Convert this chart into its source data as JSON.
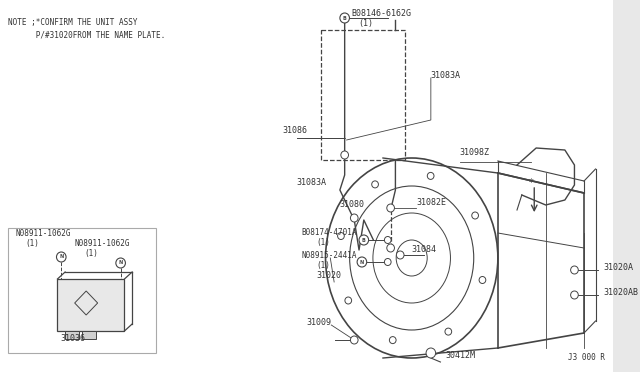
{
  "bg_color": "#ffffff",
  "outer_bg": "#e8e8e8",
  "line_color": "#444444",
  "text_color": "#333333",
  "note_line1": "NOTE ;*CONFIRM THE UNIT ASSY",
  "note_line2": "      P/#31020FROM THE NAME PLATE.",
  "footer_text": "J3 000 R",
  "label_fs": 6.0,
  "small_fs": 5.5
}
